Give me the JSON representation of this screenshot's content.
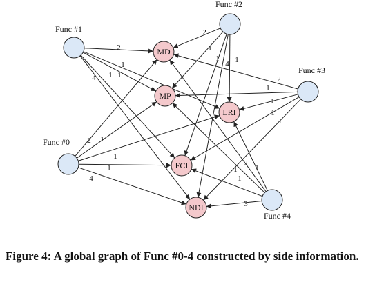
{
  "diagram": {
    "func_nodes": [
      {
        "id": "f0",
        "label": "Func #0"
      },
      {
        "id": "f1",
        "label": "Func #1"
      },
      {
        "id": "f2",
        "label": "Func #2"
      },
      {
        "id": "f3",
        "label": "Func #3"
      },
      {
        "id": "f4",
        "label": "Func #4"
      }
    ],
    "side_nodes": [
      {
        "id": "MD",
        "label": "MD"
      },
      {
        "id": "MP",
        "label": "MP"
      },
      {
        "id": "LRI",
        "label": "LRI"
      },
      {
        "id": "FCI",
        "label": "FCI"
      },
      {
        "id": "NDI",
        "label": "NDI"
      }
    ],
    "edges": [
      {
        "from": "f1",
        "to": "MD",
        "label": "2"
      },
      {
        "from": "f1",
        "to": "MP",
        "label": "1"
      },
      {
        "from": "f1",
        "to": "LRI",
        "label": "1"
      },
      {
        "from": "f1",
        "to": "FCI",
        "label": "1"
      },
      {
        "from": "f1",
        "to": "NDI",
        "label": "4"
      },
      {
        "from": "f2",
        "to": "MD",
        "label": "2"
      },
      {
        "from": "f2",
        "to": "MP",
        "label": "1"
      },
      {
        "from": "f2",
        "to": "LRI",
        "label": "1"
      },
      {
        "from": "f2",
        "to": "FCI",
        "label": "1"
      },
      {
        "from": "f2",
        "to": "NDI",
        "label": "4"
      },
      {
        "from": "f3",
        "to": "MD",
        "label": "2"
      },
      {
        "from": "f3",
        "to": "MP",
        "label": "1"
      },
      {
        "from": "f3",
        "to": "LRI",
        "label": "1"
      },
      {
        "from": "f3",
        "to": "FCI",
        "label": "1"
      },
      {
        "from": "f3",
        "to": "NDI",
        "label": "5"
      },
      {
        "from": "f0",
        "to": "MD",
        "label": "2"
      },
      {
        "from": "f0",
        "to": "MP",
        "label": "1"
      },
      {
        "from": "f0",
        "to": "LRI",
        "label": "1"
      },
      {
        "from": "f0",
        "to": "FCI",
        "label": "1"
      },
      {
        "from": "f0",
        "to": "NDI",
        "label": "4"
      },
      {
        "from": "f4",
        "to": "MD",
        "label": "1"
      },
      {
        "from": "f4",
        "to": "MP",
        "label": "2"
      },
      {
        "from": "f4",
        "to": "LRI",
        "label": "1"
      },
      {
        "from": "f4",
        "to": "FCI",
        "label": "1"
      },
      {
        "from": "f4",
        "to": "NDI",
        "label": "3"
      }
    ],
    "colors": {
      "func_fill": "#dbe8f7",
      "side_fill": "#f4c9cc",
      "stroke": "#222222"
    }
  },
  "caption": "Figure 4: A global graph of Func #0-4 constructed by side information."
}
